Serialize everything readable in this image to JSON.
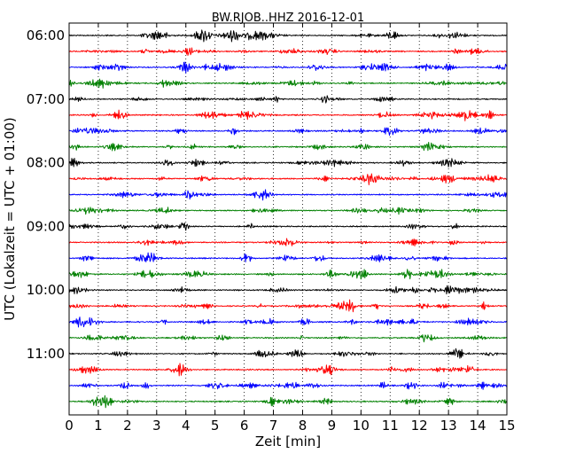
{
  "chart_data": {
    "type": "line",
    "title": "BW.RJOB..HHZ 2016-12-01",
    "xlabel": "Zeit  [min]",
    "ylabel": "UTC (Lokalzeit = UTC + 01:00)",
    "xlim": [
      0,
      15
    ],
    "x_ticks": [
      "0",
      "1",
      "2",
      "3",
      "4",
      "5",
      "6",
      "7",
      "8",
      "9",
      "10",
      "11",
      "12",
      "13",
      "14",
      "15"
    ],
    "y_tick_labels": [
      "06:00",
      "07:00",
      "08:00",
      "09:00",
      "10:00",
      "11:00"
    ],
    "trace_start": "06:00",
    "trace_interval_min": 15,
    "trace_count": 24,
    "trace_colors": [
      "#000000",
      "#ff0000",
      "#0000ff",
      "#008000"
    ],
    "grid_x": true,
    "grid_style": "dotted"
  }
}
